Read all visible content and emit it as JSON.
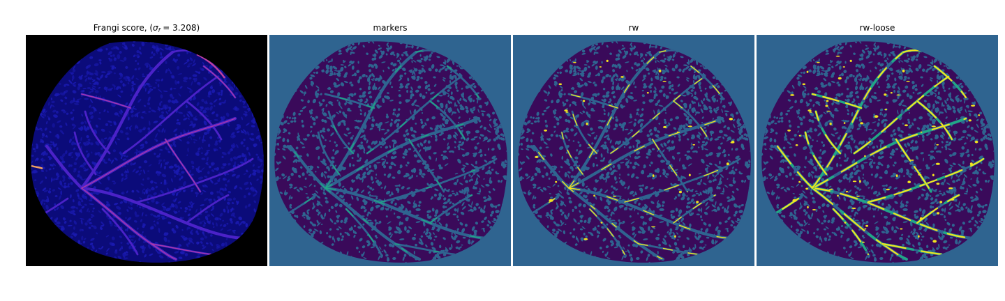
{
  "panels": [
    {
      "id": "frangi",
      "title_prefix": "Frangi score, (",
      "title_sigma": "σ",
      "title_sub": "f",
      "title_suffix": " = 3.208)",
      "colors": {
        "background": "#000000",
        "tissue": "#0b0b7a",
        "noise": "#1a1ab0",
        "vessel": "#4b22c8",
        "vessel_hi": "#c03fa0",
        "vessel_top": "#f0a060"
      }
    },
    {
      "id": "markers",
      "title": "markers",
      "colors": {
        "background": "#2f6490",
        "tissue": "#3a0a5a",
        "speckle": "#2f6490",
        "vessel": "#2f6490",
        "marker_hi": "#21a786"
      }
    },
    {
      "id": "rw",
      "title": "rw",
      "colors": {
        "background": "#2f6490",
        "tissue": "#3a0a5a",
        "speckle": "#2f6490",
        "vessel": "#2f6490",
        "highlight": "#f2e21f"
      }
    },
    {
      "id": "rw-loose",
      "title": "rw-loose",
      "colors": {
        "background": "#2f6490",
        "tissue": "#3a0a5a",
        "speckle": "#2f6490",
        "vessel": "#2f6490",
        "highlight": "#f2e21f",
        "highlight_edge": "#21a786"
      }
    }
  ]
}
